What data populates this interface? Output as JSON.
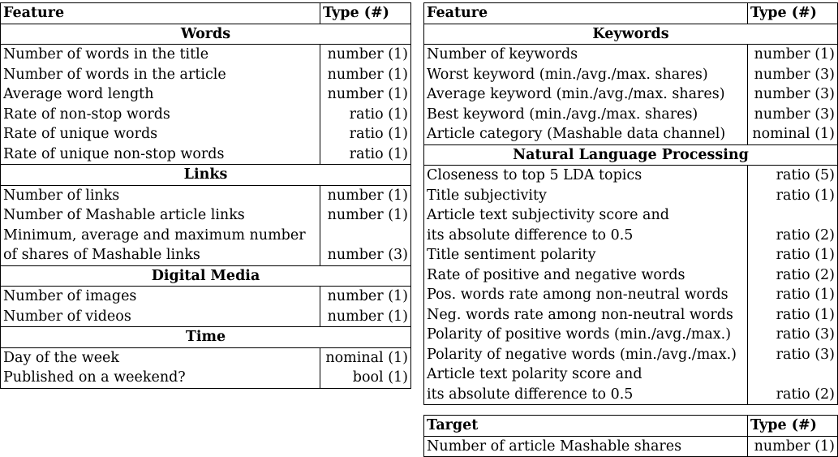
{
  "left_table": {
    "header": {
      "feature": "Feature",
      "type": "Type (#)"
    },
    "sections": [
      {
        "title": "Words",
        "rows": [
          {
            "feature": "Number of words in the title",
            "type": "number (1)"
          },
          {
            "feature": "Number of words in the article",
            "type": "number (1)"
          },
          {
            "feature": "Average word length",
            "type": "number (1)"
          },
          {
            "feature": "Rate of non-stop words",
            "type": "ratio (1)"
          },
          {
            "feature": "Rate of unique words",
            "type": "ratio (1)"
          },
          {
            "feature": "Rate of unique non-stop words",
            "type": "ratio (1)"
          }
        ]
      },
      {
        "title": "Links",
        "rows": [
          {
            "feature": "Number of links",
            "type": "number (1)"
          },
          {
            "feature": "Number of Mashable article links",
            "type": "number (1)"
          },
          {
            "feature": "Minimum, average and maximum number",
            "type": ""
          },
          {
            "feature": "of shares of Mashable links",
            "type": "number (3)"
          }
        ]
      },
      {
        "title": "Digital Media",
        "rows": [
          {
            "feature": "Number of images",
            "type": "number (1)"
          },
          {
            "feature": "Number of videos",
            "type": "number (1)"
          }
        ]
      },
      {
        "title": "Time",
        "rows": [
          {
            "feature": "Day of the week",
            "type": "nominal (1)"
          },
          {
            "feature": "Published on a weekend?",
            "type": "bool (1)"
          }
        ]
      }
    ]
  },
  "right_table": {
    "header": {
      "feature": "Feature",
      "type": "Type (#)"
    },
    "sections": [
      {
        "title": "Keywords",
        "rows": [
          {
            "feature": "Number of keywords",
            "type": "number (1)"
          },
          {
            "feature": "Worst keyword (min./avg./max. shares)",
            "type": "number (3)"
          },
          {
            "feature": "Average keyword (min./avg./max. shares)",
            "type": "number (3)"
          },
          {
            "feature": "Best keyword (min./avg./max. shares)",
            "type": "number (3)"
          },
          {
            "feature": "Article category (Mashable data channel)",
            "type": "nominal (1)"
          }
        ]
      },
      {
        "title": "Natural Language Processing",
        "rows": [
          {
            "feature": "Closeness to top 5 LDA topics",
            "type": "ratio (5)"
          },
          {
            "feature": "Title subjectivity",
            "type": "ratio (1)"
          },
          {
            "feature": "Article text subjectivity score and",
            "type": ""
          },
          {
            "feature": "its absolute difference to 0.5",
            "type": "ratio (2)"
          },
          {
            "feature": "Title sentiment polarity",
            "type": "ratio (1)"
          },
          {
            "feature": "Rate of positive and negative words",
            "type": "ratio (2)"
          },
          {
            "feature": "Pos. words rate among non-neutral words",
            "type": "ratio (1)"
          },
          {
            "feature": "Neg. words rate among non-neutral words",
            "type": "ratio (1)"
          },
          {
            "feature": "Polarity of positive words (min./avg./max.)",
            "type": "ratio (3)"
          },
          {
            "feature": "Polarity of negative words (min./avg./max.)",
            "type": "ratio (3)"
          },
          {
            "feature": "Article text polarity score and",
            "type": ""
          },
          {
            "feature": "its absolute difference to 0.5",
            "type": "ratio (2)"
          }
        ]
      }
    ]
  },
  "target_table": {
    "header": {
      "feature": "Target",
      "type": "Type (#)"
    },
    "rows": [
      {
        "feature": "Number of article Mashable shares",
        "type": "number (1)"
      }
    ]
  }
}
